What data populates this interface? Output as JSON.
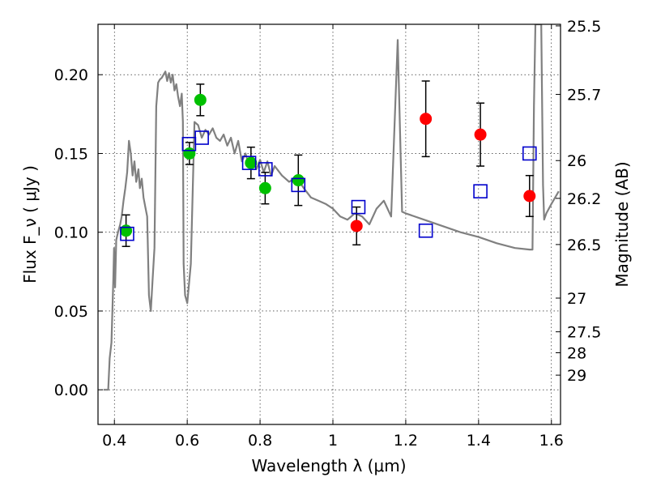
{
  "chart_data": {
    "type": "scatter",
    "title": "",
    "xlabel": "Wavelength  λ (μm)",
    "ylabel": "Flux  F_ν  ( μJy )",
    "ylabel_right": "Magnitude (AB)",
    "xlim": [
      0.355,
      1.625
    ],
    "ylim": [
      -0.022,
      0.232
    ],
    "grid": true,
    "legend": "none",
    "xticks": [
      0.4,
      0.6,
      0.8,
      1.0,
      1.2,
      1.4,
      1.6
    ],
    "xtick_labels": [
      "0.4",
      "0.6",
      "0.8",
      "1",
      "1.2",
      "1.4",
      "1.6"
    ],
    "yticks": [
      0.0,
      0.05,
      0.1,
      0.15,
      0.2
    ],
    "ytick_labels": [
      "0.00",
      "0.05",
      "0.10",
      "0.15",
      "0.20"
    ],
    "right_ticks": [
      {
        "label": "25.5",
        "flux": 0.231
      },
      {
        "label": "25.7",
        "flux": 0.1875
      },
      {
        "label": "26",
        "flux": 0.1455
      },
      {
        "label": "26.2",
        "flux": 0.1215
      },
      {
        "label": "26.5",
        "flux": 0.0922
      },
      {
        "label": "27",
        "flux": 0.0582
      },
      {
        "label": "27.5",
        "flux": 0.0368
      },
      {
        "label": "28",
        "flux": 0.0235
      },
      {
        "label": "29",
        "flux": 0.0093
      }
    ],
    "series": [
      {
        "marker": "circle",
        "color": "#00c000",
        "points": [
          {
            "x": 0.432,
            "y": 0.101,
            "err": 0.01
          },
          {
            "x": 0.606,
            "y": 0.15,
            "err": 0.007
          },
          {
            "x": 0.636,
            "y": 0.184,
            "err": 0.01
          },
          {
            "x": 0.775,
            "y": 0.144,
            "err": 0.01
          },
          {
            "x": 0.814,
            "y": 0.128,
            "err": 0.01
          },
          {
            "x": 0.905,
            "y": 0.133,
            "err": 0.016
          }
        ]
      },
      {
        "marker": "circle",
        "color": "#ff0000",
        "points": [
          {
            "x": 1.065,
            "y": 0.104,
            "err": 0.012
          },
          {
            "x": 1.255,
            "y": 0.172,
            "err": 0.024
          },
          {
            "x": 1.405,
            "y": 0.162,
            "err": 0.02
          },
          {
            "x": 1.54,
            "y": 0.123,
            "err": 0.013
          }
        ]
      },
      {
        "marker": "square-open",
        "color": "#0000cc",
        "points": [
          {
            "x": 0.435,
            "y": 0.099
          },
          {
            "x": 0.605,
            "y": 0.156
          },
          {
            "x": 0.64,
            "y": 0.16
          },
          {
            "x": 0.77,
            "y": 0.144
          },
          {
            "x": 0.815,
            "y": 0.14
          },
          {
            "x": 0.905,
            "y": 0.13
          },
          {
            "x": 1.07,
            "y": 0.116
          },
          {
            "x": 1.255,
            "y": 0.101
          },
          {
            "x": 1.405,
            "y": 0.126
          },
          {
            "x": 1.54,
            "y": 0.15
          }
        ]
      }
    ],
    "model_spectrum": {
      "color": "#808080",
      "x": [
        0.37,
        0.383,
        0.387,
        0.392,
        0.397,
        0.399,
        0.402,
        0.405,
        0.41,
        0.416,
        0.42,
        0.425,
        0.43,
        0.435,
        0.44,
        0.445,
        0.45,
        0.455,
        0.46,
        0.466,
        0.47,
        0.475,
        0.48,
        0.485,
        0.49,
        0.495,
        0.5,
        0.505,
        0.51,
        0.515,
        0.52,
        0.525,
        0.53,
        0.535,
        0.54,
        0.545,
        0.55,
        0.555,
        0.56,
        0.565,
        0.57,
        0.575,
        0.58,
        0.585,
        0.588,
        0.59,
        0.594,
        0.6,
        0.61,
        0.62,
        0.63,
        0.64,
        0.65,
        0.66,
        0.67,
        0.68,
        0.69,
        0.7,
        0.71,
        0.72,
        0.73,
        0.74,
        0.75,
        0.76,
        0.77,
        0.78,
        0.79,
        0.8,
        0.81,
        0.82,
        0.83,
        0.84,
        0.86,
        0.88,
        0.9,
        0.92,
        0.94,
        0.96,
        0.98,
        1.0,
        1.02,
        1.04,
        1.06,
        1.08,
        1.1,
        1.12,
        1.14,
        1.16,
        1.178,
        1.19,
        1.2,
        1.25,
        1.3,
        1.35,
        1.4,
        1.45,
        1.5,
        1.54,
        1.548,
        1.552,
        1.556,
        1.56,
        1.566,
        1.572,
        1.577,
        1.58,
        1.586,
        1.6,
        1.62
      ],
      "y": [
        0.0,
        0.0,
        0.02,
        0.03,
        0.07,
        0.09,
        0.065,
        0.095,
        0.1,
        0.105,
        0.11,
        0.12,
        0.128,
        0.138,
        0.158,
        0.15,
        0.136,
        0.145,
        0.132,
        0.14,
        0.128,
        0.134,
        0.122,
        0.116,
        0.11,
        0.06,
        0.05,
        0.07,
        0.09,
        0.18,
        0.195,
        0.197,
        0.198,
        0.2,
        0.202,
        0.196,
        0.201,
        0.195,
        0.2,
        0.19,
        0.194,
        0.186,
        0.18,
        0.188,
        0.17,
        0.08,
        0.06,
        0.055,
        0.08,
        0.17,
        0.168,
        0.16,
        0.165,
        0.162,
        0.166,
        0.16,
        0.158,
        0.162,
        0.155,
        0.16,
        0.15,
        0.158,
        0.145,
        0.15,
        0.142,
        0.148,
        0.14,
        0.146,
        0.138,
        0.145,
        0.136,
        0.142,
        0.136,
        0.132,
        0.135,
        0.128,
        0.122,
        0.12,
        0.118,
        0.115,
        0.11,
        0.108,
        0.112,
        0.11,
        0.105,
        0.115,
        0.12,
        0.11,
        0.222,
        0.113,
        0.112,
        0.108,
        0.104,
        0.1,
        0.097,
        0.093,
        0.09,
        0.089,
        0.089,
        0.18,
        0.232,
        0.232,
        0.232,
        0.232,
        0.13,
        0.108,
        0.112,
        0.118,
        0.126
      ]
    }
  }
}
